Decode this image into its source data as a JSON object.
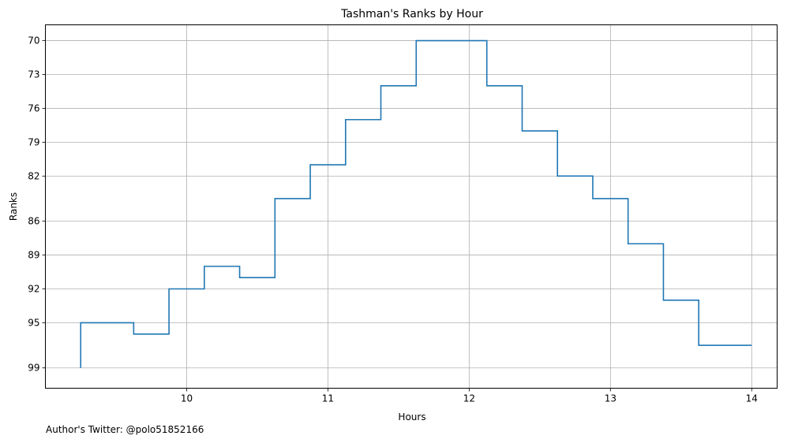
{
  "chart_data": {
    "type": "line",
    "step": true,
    "title": "Tashman's Ranks by Hour",
    "xlabel": "Hours",
    "ylabel": "Ranks",
    "xlim": [
      9.0,
      14.18
    ],
    "ylim": [
      100.8,
      68.6
    ],
    "y_inverted": true,
    "grid": true,
    "x_ticks": [
      10,
      11,
      12,
      13,
      14
    ],
    "y_ticks": [
      70,
      73,
      76,
      79,
      82,
      86,
      89,
      92,
      95,
      99
    ],
    "series": [
      {
        "color": "#1f77b4",
        "x": [
          9.25,
          9.375,
          9.625,
          9.875,
          10.125,
          10.375,
          10.625,
          10.875,
          11.125,
          11.375,
          11.625,
          11.875,
          12.125,
          12.375,
          12.625,
          12.875,
          13.125,
          13.375,
          13.625,
          13.875,
          14.0
        ],
        "y": [
          99,
          95,
          95,
          96,
          92,
          90,
          91,
          84,
          81,
          77,
          74,
          70,
          70,
          74,
          78,
          82,
          84,
          88,
          93,
          97,
          97
        ]
      }
    ]
  },
  "footer": {
    "credit": "Author's Twitter: @polo51852166"
  }
}
